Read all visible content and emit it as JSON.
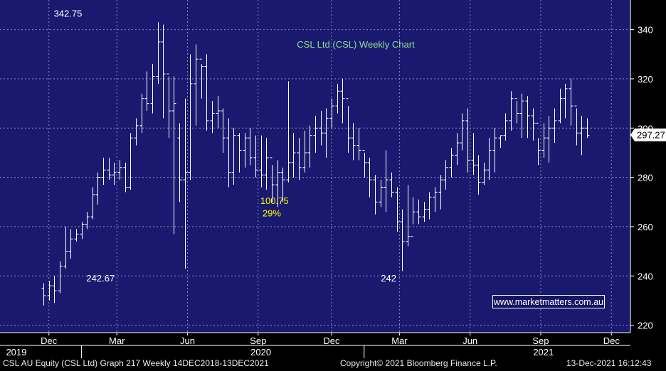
{
  "colors": {
    "plot_bg": "#191970",
    "grid": "#8a8ab8",
    "bars": "#ffffff",
    "title": "#8fe08f",
    "annotation_yellow": "#ffff00",
    "annotation_white": "#ffffff",
    "link_bg": "#141463",
    "link_text": "#ffffff",
    "price_tag_bg": "#ffffff",
    "price_tag_text": "#000000"
  },
  "chart_data": {
    "type": "ohlc",
    "title": "CSL Ltd (CSL) Weekly Chart",
    "ylim": [
      217,
      352
    ],
    "y_ticks": [
      220,
      240,
      260,
      280,
      300,
      320,
      340
    ],
    "x_ticks": [
      {
        "label": "Dec",
        "t": 1.0
      },
      {
        "label": "Mar",
        "t": 13.5
      },
      {
        "label": "Jun",
        "t": 26.5
      },
      {
        "label": "Sep",
        "t": 39.5
      },
      {
        "label": "Dec",
        "t": 53.0
      },
      {
        "label": "Mar",
        "t": 65.5
      },
      {
        "label": "Jun",
        "t": 78.5
      },
      {
        "label": "Sep",
        "t": 91.5
      },
      {
        "label": "Dec",
        "t": 104.5
      }
    ],
    "year_labels": [
      {
        "label": "2019",
        "t": -5.0
      },
      {
        "label": "2020",
        "t": 40.0
      },
      {
        "label": "2021",
        "t": 92.0
      }
    ],
    "year_separators": [
      7.0,
      59.0
    ],
    "last_price": 297.27,
    "annotations": [
      {
        "text": "342.75",
        "t": 4.5,
        "y": 345.2,
        "color": "white"
      },
      {
        "text": "242.67",
        "t": 10.5,
        "y": 237.8,
        "color": "white"
      },
      {
        "text": "242",
        "t": 63.5,
        "y": 237.8,
        "color": "white"
      },
      {
        "text": "100.75",
        "t": 42.5,
        "y": 269.2,
        "color": "yellow"
      },
      {
        "text": "29%",
        "t": 42.0,
        "y": 264.2,
        "color": "yellow"
      }
    ],
    "link_text": "www.marketmatters.com.au",
    "bars": [
      [
        235,
        237,
        228,
        232
      ],
      [
        232,
        238,
        230,
        236
      ],
      [
        236,
        240,
        229,
        234
      ],
      [
        234,
        246,
        233,
        244
      ],
      [
        244,
        260,
        243,
        250
      ],
      [
        250,
        259,
        247,
        255
      ],
      [
        255,
        259,
        254,
        257
      ],
      [
        257,
        262,
        255,
        261
      ],
      [
        261,
        266,
        259,
        264
      ],
      [
        264,
        276,
        263,
        273
      ],
      [
        273,
        282,
        269,
        280
      ],
      [
        280,
        288,
        277,
        283
      ],
      [
        283,
        288,
        279,
        281
      ],
      [
        281,
        286,
        277,
        282
      ],
      [
        282,
        287,
        279,
        284
      ],
      [
        284,
        286,
        274,
        276
      ],
      [
        276,
        298,
        275,
        296
      ],
      [
        296,
        304,
        293,
        301
      ],
      [
        301,
        314,
        298,
        312
      ],
      [
        312,
        323,
        307,
        310
      ],
      [
        310,
        326,
        306,
        321
      ],
      [
        321,
        343,
        318,
        335
      ],
      [
        335,
        342,
        304,
        322
      ],
      [
        322,
        321,
        296,
        307
      ],
      [
        307,
        321,
        257,
        310
      ],
      [
        296,
        302,
        270,
        279
      ],
      [
        279,
        312,
        243,
        282
      ],
      [
        282,
        330,
        279,
        318
      ],
      [
        318,
        334,
        301,
        328
      ],
      [
        328,
        326,
        312,
        325
      ],
      [
        325,
        330,
        299,
        303
      ],
      [
        303,
        311,
        298,
        306
      ],
      [
        306,
        313,
        300,
        307
      ],
      [
        307,
        308,
        290,
        296
      ],
      [
        296,
        304,
        276,
        282
      ],
      [
        282,
        300,
        277,
        297
      ],
      [
        297,
        298,
        282,
        291
      ],
      [
        291,
        298,
        284,
        296
      ],
      [
        296,
        300,
        285,
        288
      ],
      [
        288,
        297,
        280,
        283
      ],
      [
        283,
        297,
        276,
        281
      ],
      [
        281,
        296,
        275,
        288
      ],
      [
        288,
        285,
        270,
        277
      ],
      [
        277,
        287,
        268,
        282
      ],
      [
        282,
        284,
        270,
        279
      ],
      [
        279,
        319,
        278,
        286
      ],
      [
        286,
        298,
        280,
        290
      ],
      [
        290,
        296,
        279,
        284
      ],
      [
        284,
        299,
        282,
        290
      ],
      [
        290,
        301,
        284,
        297
      ],
      [
        297,
        305,
        290,
        300
      ],
      [
        300,
        307,
        293,
        298
      ],
      [
        298,
        308,
        288,
        304
      ],
      [
        304,
        312,
        300,
        309
      ],
      [
        309,
        318,
        306,
        315
      ],
      [
        315,
        320,
        302,
        312
      ],
      [
        312,
        309,
        290,
        296
      ],
      [
        296,
        302,
        287,
        293
      ],
      [
        293,
        300,
        287,
        291
      ],
      [
        291,
        290,
        280,
        286
      ],
      [
        286,
        288,
        272,
        279
      ],
      [
        279,
        281,
        265,
        270
      ],
      [
        270,
        279,
        268,
        276
      ],
      [
        276,
        291,
        266,
        279
      ],
      [
        279,
        282,
        272,
        274
      ],
      [
        274,
        276,
        258,
        262
      ],
      [
        262,
        267,
        242,
        254
      ],
      [
        254,
        277,
        252,
        256
      ],
      [
        256,
        272,
        261,
        266
      ],
      [
        266,
        271,
        261,
        264
      ],
      [
        264,
        270,
        262,
        267
      ],
      [
        267,
        274,
        263,
        272
      ],
      [
        272,
        276,
        266,
        274
      ],
      [
        274,
        281,
        267,
        279
      ],
      [
        279,
        287,
        275,
        284
      ],
      [
        284,
        292,
        280,
        289
      ],
      [
        289,
        298,
        285,
        294
      ],
      [
        294,
        306,
        291,
        303
      ],
      [
        303,
        308,
        282,
        287
      ],
      [
        287,
        298,
        281,
        285
      ],
      [
        285,
        289,
        273,
        278
      ],
      [
        278,
        286,
        277,
        283
      ],
      [
        283,
        296,
        279,
        291
      ],
      [
        291,
        300,
        282,
        296
      ],
      [
        296,
        297,
        292,
        297
      ],
      [
        297,
        306,
        295,
        303
      ],
      [
        303,
        315,
        299,
        312
      ],
      [
        312,
        311,
        302,
        306
      ],
      [
        306,
        314,
        296,
        311
      ],
      [
        311,
        313,
        296,
        305
      ],
      [
        305,
        308,
        295,
        302
      ],
      [
        302,
        296,
        285,
        291
      ],
      [
        291,
        302,
        288,
        296
      ],
      [
        296,
        305,
        286,
        300
      ],
      [
        300,
        308,
        294,
        303
      ],
      [
        303,
        316,
        302,
        312
      ],
      [
        312,
        318,
        304,
        316
      ],
      [
        316,
        320,
        301,
        309
      ],
      [
        309,
        308,
        293,
        298
      ],
      [
        298,
        305,
        289,
        300
      ],
      [
        300,
        304,
        296,
        297
      ]
    ]
  },
  "footer": {
    "left": "CSL AU Equity (CSL Ltd) Graph 217  Weekly 14DEC2018-13DEC2021",
    "center": "Copyright© 2021 Bloomberg Finance L.P.",
    "right": "13-Dec-2021 16:12:43"
  }
}
